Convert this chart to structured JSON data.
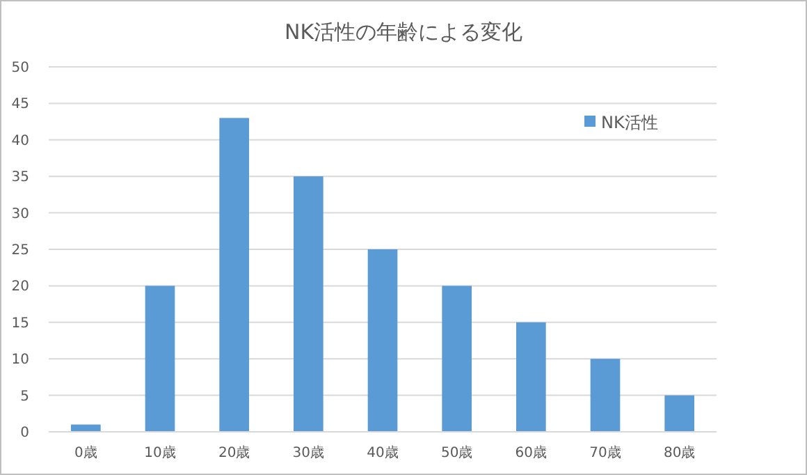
{
  "chart_data": {
    "type": "bar",
    "title": "NK活性の年齢による変化",
    "categories": [
      "0歳",
      "10歳",
      "20歳",
      "30歳",
      "40歳",
      "50歳",
      "60歳",
      "70歳",
      "80歳"
    ],
    "series": [
      {
        "name": "NK活性",
        "color": "#5b9bd5",
        "values": [
          1,
          20,
          43,
          35,
          25,
          20,
          15,
          10,
          5
        ]
      }
    ],
    "ylim": [
      0,
      50
    ],
    "yticks": [
      0,
      5,
      10,
      15,
      20,
      25,
      30,
      35,
      40,
      45,
      50
    ],
    "grid": "y",
    "legend": "top right"
  }
}
